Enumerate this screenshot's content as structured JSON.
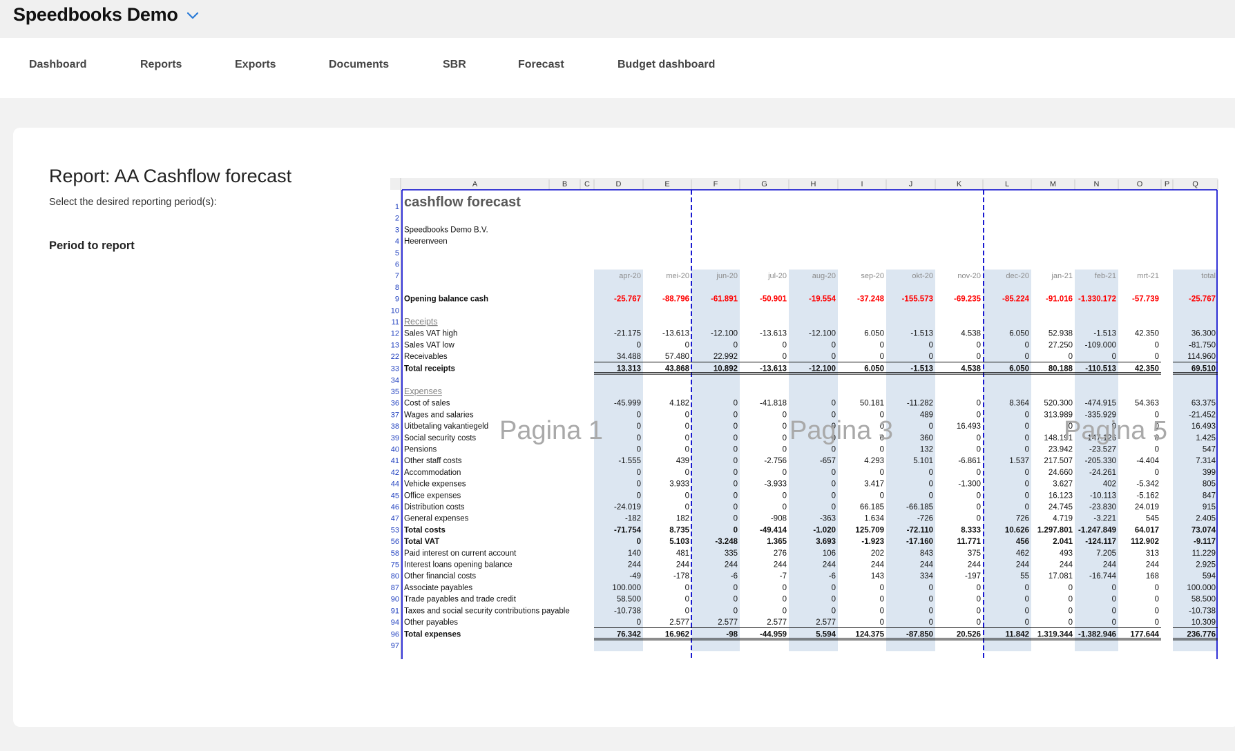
{
  "app": {
    "title": "Speedbooks Demo"
  },
  "nav": {
    "items": [
      {
        "id": "dashboard",
        "label": "Dashboard"
      },
      {
        "id": "reports",
        "label": "Reports"
      },
      {
        "id": "exports",
        "label": "Exports"
      },
      {
        "id": "documents",
        "label": "Documents"
      },
      {
        "id": "sbr",
        "label": "SBR"
      },
      {
        "id": "forecast",
        "label": "Forecast"
      },
      {
        "id": "budget-dashboard",
        "label": "Budget dashboard"
      }
    ]
  },
  "report": {
    "title": "Report: AA Cashflow forecast",
    "subtitle": "Select the desired reporting period(s):",
    "period_label": "Period to report"
  },
  "colors": {
    "shaded_column": "#dce6f1",
    "negative_opening": "#ff0000",
    "row_number": "#1f3fbf",
    "page_break": "#0000cc",
    "watermark": "#a9a9a9"
  },
  "sheet": {
    "column_letters": [
      "A",
      "B",
      "C",
      "D",
      "E",
      "F",
      "G",
      "H",
      "I",
      "J",
      "K",
      "L",
      "M",
      "N",
      "O",
      "P",
      "Q"
    ],
    "title": "cashflow forecast",
    "company": "Speedbooks Demo B.V.",
    "city": "Heerenveen",
    "watermarks": [
      "Pagina 1",
      "Pagina 3",
      "Pagina 5"
    ],
    "months": [
      "apr-20",
      "mei-20",
      "jun-20",
      "jul-20",
      "aug-20",
      "sep-20",
      "okt-20",
      "nov-20",
      "dec-20",
      "jan-21",
      "feb-21",
      "mrt-21",
      "total"
    ],
    "rows": [
      {
        "n": "1",
        "label": "",
        "type": "title"
      },
      {
        "n": "2",
        "label": "",
        "type": "blank"
      },
      {
        "n": "3",
        "label": "",
        "type": "company"
      },
      {
        "n": "4",
        "label": "",
        "type": "city"
      },
      {
        "n": "5",
        "label": "",
        "type": "blank"
      },
      {
        "n": "6",
        "label": "",
        "type": "blank"
      },
      {
        "n": "7",
        "label": "",
        "type": "header"
      },
      {
        "n": "8",
        "label": "",
        "type": "blank"
      },
      {
        "n": "9",
        "label": "Opening balance cash",
        "type": "opening",
        "values": [
          "-25.767",
          "-88.796",
          "-61.891",
          "-50.901",
          "-19.554",
          "-37.248",
          "-155.573",
          "-69.235",
          "-85.224",
          "-91.016",
          "-1.330.172",
          "-57.739",
          "-25.767"
        ]
      },
      {
        "n": "10",
        "label": "",
        "type": "blank"
      },
      {
        "n": "11",
        "label": "Receipts",
        "type": "section"
      },
      {
        "n": "12",
        "label": "Sales VAT high",
        "type": "data",
        "values": [
          "-21.175",
          "-13.613",
          "-12.100",
          "-13.613",
          "-12.100",
          "6.050",
          "-1.513",
          "4.538",
          "6.050",
          "52.938",
          "-1.513",
          "42.350",
          "36.300"
        ]
      },
      {
        "n": "13",
        "label": "Sales VAT low",
        "type": "data",
        "values": [
          "0",
          "0",
          "0",
          "0",
          "0",
          "0",
          "0",
          "0",
          "0",
          "27.250",
          "-109.000",
          "0",
          "-81.750"
        ]
      },
      {
        "n": "22",
        "label": "Receivables",
        "type": "data",
        "values": [
          "34.488",
          "57.480",
          "22.992",
          "0",
          "0",
          "0",
          "0",
          "0",
          "0",
          "0",
          "0",
          "0",
          "114.960"
        ]
      },
      {
        "n": "33",
        "label": "Total receipts",
        "type": "total",
        "values": [
          "13.313",
          "43.868",
          "10.892",
          "-13.613",
          "-12.100",
          "6.050",
          "-1.513",
          "4.538",
          "6.050",
          "80.188",
          "-110.513",
          "42.350",
          "69.510"
        ]
      },
      {
        "n": "34",
        "label": "",
        "type": "blank"
      },
      {
        "n": "35",
        "label": "Expenses",
        "type": "section"
      },
      {
        "n": "36",
        "label": "Cost of sales",
        "type": "data",
        "values": [
          "-45.999",
          "4.182",
          "0",
          "-41.818",
          "0",
          "50.181",
          "-11.282",
          "0",
          "8.364",
          "520.300",
          "-474.915",
          "54.363",
          "63.375"
        ]
      },
      {
        "n": "37",
        "label": "Wages and salaries",
        "type": "data",
        "values": [
          "0",
          "0",
          "0",
          "0",
          "0",
          "0",
          "489",
          "0",
          "0",
          "313.989",
          "-335.929",
          "0",
          "-21.452"
        ]
      },
      {
        "n": "38",
        "label": "Uitbetaling vakantiegeld",
        "type": "data",
        "values": [
          "0",
          "0",
          "0",
          "0",
          "0",
          "0",
          "0",
          "16.493",
          "0",
          "0",
          "0",
          "0",
          "16.493"
        ]
      },
      {
        "n": "39",
        "label": "Social security costs",
        "type": "data",
        "values": [
          "0",
          "0",
          "0",
          "0",
          "0",
          "0",
          "360",
          "0",
          "0",
          "148.191",
          "-147.126",
          "0",
          "1.425"
        ]
      },
      {
        "n": "40",
        "label": "Pensions",
        "type": "data",
        "values": [
          "0",
          "0",
          "0",
          "0",
          "0",
          "0",
          "132",
          "0",
          "0",
          "23.942",
          "-23.527",
          "0",
          "547"
        ]
      },
      {
        "n": "41",
        "label": "Other staff costs",
        "type": "data",
        "values": [
          "-1.555",
          "439",
          "0",
          "-2.756",
          "-657",
          "4.293",
          "5.101",
          "-6.861",
          "1.537",
          "217.507",
          "-205.330",
          "-4.404",
          "7.314"
        ]
      },
      {
        "n": "42",
        "label": "Accommodation",
        "type": "data",
        "values": [
          "0",
          "0",
          "0",
          "0",
          "0",
          "0",
          "0",
          "0",
          "0",
          "24.660",
          "-24.261",
          "0",
          "399"
        ]
      },
      {
        "n": "44",
        "label": "Vehicle expenses",
        "type": "data",
        "values": [
          "0",
          "3.933",
          "0",
          "-3.933",
          "0",
          "3.417",
          "0",
          "-1.300",
          "0",
          "3.627",
          "402",
          "-5.342",
          "805"
        ]
      },
      {
        "n": "45",
        "label": "Office expenses",
        "type": "data",
        "values": [
          "0",
          "0",
          "0",
          "0",
          "0",
          "0",
          "0",
          "0",
          "0",
          "16.123",
          "-10.113",
          "-5.162",
          "847"
        ]
      },
      {
        "n": "46",
        "label": "Distribution costs",
        "type": "data",
        "values": [
          "-24.019",
          "0",
          "0",
          "0",
          "0",
          "66.185",
          "-66.185",
          "0",
          "0",
          "24.745",
          "-23.830",
          "24.019",
          "915"
        ]
      },
      {
        "n": "47",
        "label": "General expenses",
        "type": "data",
        "values": [
          "-182",
          "182",
          "0",
          "-908",
          "-363",
          "1.634",
          "-726",
          "0",
          "726",
          "4.719",
          "-3.221",
          "545",
          "2.405"
        ]
      },
      {
        "n": "53",
        "label": "Total costs",
        "type": "bold",
        "values": [
          "-71.754",
          "8.735",
          "0",
          "-49.414",
          "-1.020",
          "125.709",
          "-72.110",
          "8.333",
          "10.626",
          "1.297.801",
          "-1.247.849",
          "64.017",
          "73.074"
        ]
      },
      {
        "n": "56",
        "label": "Total VAT",
        "type": "bold",
        "values": [
          "0",
          "5.103",
          "-3.248",
          "1.365",
          "3.693",
          "-1.923",
          "-17.160",
          "11.771",
          "456",
          "2.041",
          "-124.117",
          "112.902",
          "-9.117"
        ]
      },
      {
        "n": "58",
        "label": "Paid interest on current account",
        "type": "data",
        "values": [
          "140",
          "481",
          "335",
          "276",
          "106",
          "202",
          "843",
          "375",
          "462",
          "493",
          "7.205",
          "313",
          "11.229"
        ]
      },
      {
        "n": "75",
        "label": "Interest loans opening balance",
        "type": "data",
        "values": [
          "244",
          "244",
          "244",
          "244",
          "244",
          "244",
          "244",
          "244",
          "244",
          "244",
          "244",
          "244",
          "2.925"
        ]
      },
      {
        "n": "80",
        "label": "Other financial costs",
        "type": "data",
        "values": [
          "-49",
          "-178",
          "-6",
          "-7",
          "-6",
          "143",
          "334",
          "-197",
          "55",
          "17.081",
          "-16.744",
          "168",
          "594"
        ]
      },
      {
        "n": "87",
        "label": "Associate payables",
        "type": "data",
        "values": [
          "100.000",
          "0",
          "0",
          "0",
          "0",
          "0",
          "0",
          "0",
          "0",
          "0",
          "0",
          "0",
          "100.000"
        ]
      },
      {
        "n": "90",
        "label": "Trade payables and trade credit",
        "type": "data",
        "values": [
          "58.500",
          "0",
          "0",
          "0",
          "0",
          "0",
          "0",
          "0",
          "0",
          "0",
          "0",
          "0",
          "58.500"
        ]
      },
      {
        "n": "91",
        "label": "Taxes and social security contributions payable",
        "type": "data",
        "values": [
          "-10.738",
          "0",
          "0",
          "0",
          "0",
          "0",
          "0",
          "0",
          "0",
          "0",
          "0",
          "0",
          "-10.738"
        ]
      },
      {
        "n": "94",
        "label": "Other payables",
        "type": "data",
        "values": [
          "0",
          "2.577",
          "2.577",
          "2.577",
          "2.577",
          "0",
          "0",
          "0",
          "0",
          "0",
          "0",
          "0",
          "10.309"
        ]
      },
      {
        "n": "96",
        "label": "Total expenses",
        "type": "total",
        "values": [
          "76.342",
          "16.962",
          "-98",
          "-44.959",
          "5.594",
          "124.375",
          "-87.850",
          "20.526",
          "11.842",
          "1.319.344",
          "-1.382.946",
          "177.644",
          "236.776"
        ]
      },
      {
        "n": "97",
        "label": "",
        "type": "blank"
      }
    ]
  }
}
